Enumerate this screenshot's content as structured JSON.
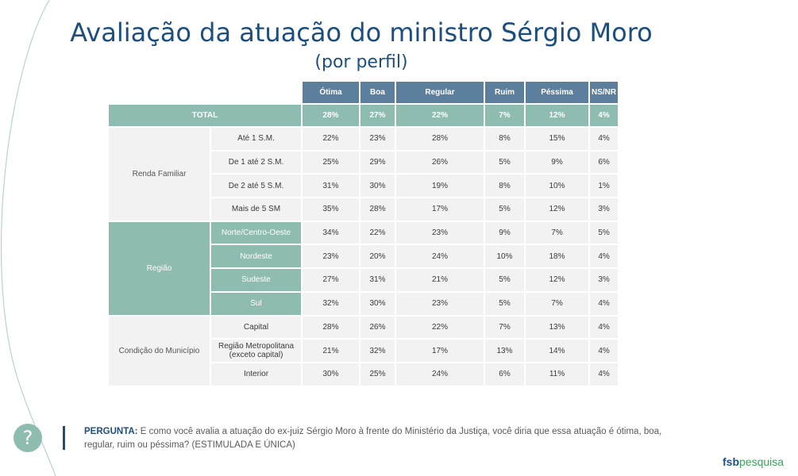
{
  "title": "Avaliação da atuação do ministro Sérgio Moro",
  "subtitle": "(por perfil)",
  "columns": [
    "Ótima",
    "Boa",
    "Regular",
    "Ruim",
    "Péssima",
    "NS/NR"
  ],
  "total": {
    "label": "TOTAL",
    "values": [
      "28%",
      "27%",
      "22%",
      "7%",
      "12%",
      "4%"
    ]
  },
  "groups": [
    {
      "label": "Renda Familiar",
      "rows": [
        {
          "label": "Até 1 S.M.",
          "values": [
            "22%",
            "23%",
            "28%",
            "8%",
            "15%",
            "4%"
          ]
        },
        {
          "label": "De 1 até 2 S.M.",
          "values": [
            "25%",
            "29%",
            "26%",
            "5%",
            "9%",
            "6%"
          ]
        },
        {
          "label": "De 2 até 5 S.M.",
          "values": [
            "31%",
            "30%",
            "19%",
            "8%",
            "10%",
            "1%"
          ]
        },
        {
          "label": "Mais de 5 SM",
          "values": [
            "35%",
            "28%",
            "17%",
            "5%",
            "12%",
            "3%"
          ]
        }
      ]
    },
    {
      "label": "Região",
      "rows": [
        {
          "label": "Norte/Centro-Oeste",
          "values": [
            "34%",
            "22%",
            "23%",
            "9%",
            "7%",
            "5%"
          ]
        },
        {
          "label": "Nordeste",
          "values": [
            "23%",
            "20%",
            "24%",
            "10%",
            "18%",
            "4%"
          ]
        },
        {
          "label": "Sudeste",
          "values": [
            "27%",
            "31%",
            "21%",
            "5%",
            "12%",
            "3%"
          ]
        },
        {
          "label": "Sul",
          "values": [
            "32%",
            "30%",
            "23%",
            "5%",
            "7%",
            "4%"
          ]
        }
      ]
    },
    {
      "label": "Condição do Município",
      "rows": [
        {
          "label": "Capital",
          "values": [
            "28%",
            "26%",
            "22%",
            "7%",
            "13%",
            "4%"
          ]
        },
        {
          "label": "Região Metropolitana (exceto capital)",
          "values": [
            "21%",
            "32%",
            "17%",
            "13%",
            "14%",
            "4%"
          ]
        },
        {
          "label": "Interior",
          "values": [
            "30%",
            "25%",
            "24%",
            "6%",
            "11%",
            "4%"
          ]
        }
      ]
    }
  ],
  "question": {
    "label": "PERGUNTA:",
    "text": "E como você avalia a atuação do ex-juiz Sérgio Moro à frente do Ministério da Justiça, você diria que essa atuação é ótima, boa, regular, ruim ou péssima? (ESTIMULADA E ÚNICA)"
  },
  "help_icon_glyph": "?",
  "logo": {
    "part1": "fsb",
    "part2": "pesquisa"
  },
  "colors": {
    "title": "#1c4e80",
    "header": "#5b7f9c",
    "teal": "#8fbcb0",
    "cell": "#f2f2f2",
    "logo_green": "#3aa35a"
  }
}
